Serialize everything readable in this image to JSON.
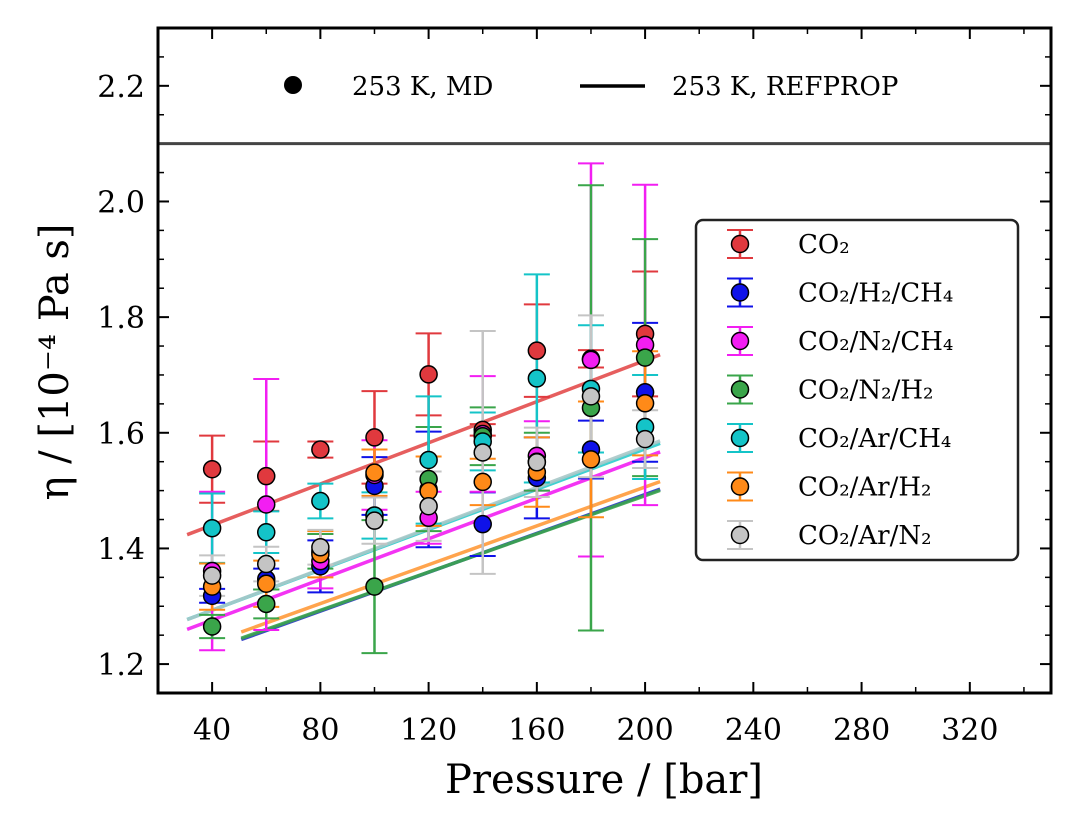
{
  "chart_data": {
    "type": "scatter",
    "xlabel": "Pressure / [bar]",
    "ylabel": "η / [10⁻⁴ Pa s]",
    "xlim": [
      20,
      350
    ],
    "ylim": [
      1.15,
      2.3
    ],
    "xticks": [
      40,
      80,
      120,
      160,
      200,
      240,
      280,
      320
    ],
    "yticks": [
      1.2,
      1.4,
      1.6,
      1.8,
      2.0,
      2.2
    ],
    "divider_y": 2.1,
    "top_legend": {
      "md_label": "253 K, MD",
      "refprop_label": "253 K, REFPROP"
    },
    "legend_title": "",
    "series": [
      {
        "name": "CO₂",
        "color": "#e0393e",
        "line_color": "#e34c4c",
        "x": [
          40,
          60,
          80,
          100,
          120,
          140,
          160,
          180,
          200
        ],
        "y": [
          1.537,
          1.525,
          1.571,
          1.592,
          1.701,
          1.605,
          1.742,
          1.728,
          1.771
        ],
        "err": [
          0.058,
          0.06,
          0.014,
          0.08,
          0.071,
          0.01,
          0.08,
          0.015,
          0.108
        ],
        "ref_x": [
          40,
          200
        ],
        "ref_y": [
          1.437,
          1.727
        ]
      },
      {
        "name": "CO₂/H₂/CH₄",
        "color": "#0f12e8",
        "line_color": "#2733c4",
        "x": [
          40,
          60,
          80,
          100,
          120,
          140,
          160,
          180,
          200
        ],
        "y": [
          1.318,
          1.347,
          1.369,
          1.508,
          1.502,
          1.442,
          1.522,
          1.571,
          1.67
        ],
        "err": [
          0.012,
          0.018,
          0.045,
          0.05,
          0.1,
          0.055,
          0.07,
          0.05,
          0.12
        ],
        "ref_x": [
          60,
          200
        ],
        "ref_y": [
          1.255,
          1.495
        ]
      },
      {
        "name": "CO₂/N₂/CH₄",
        "color": "#f21ef2",
        "line_color": "#f21ef2",
        "x": [
          40,
          60,
          80,
          100,
          120,
          140,
          160,
          180,
          200
        ],
        "y": [
          1.361,
          1.476,
          1.378,
          1.527,
          1.453,
          1.598,
          1.56,
          1.726,
          1.752
        ],
        "err": [
          0.137,
          0.217,
          0.047,
          0.06,
          0.045,
          0.1,
          0.06,
          0.34,
          0.277
        ],
        "ref_x": [
          40,
          200
        ],
        "ref_y": [
          1.273,
          1.559
        ]
      },
      {
        "name": "CO₂/N₂/H₂",
        "color": "#3aa54a",
        "line_color": "#3aa54a",
        "x": [
          40,
          60,
          80,
          100,
          120,
          140,
          160,
          180,
          200
        ],
        "y": [
          1.265,
          1.304,
          1.395,
          1.334,
          1.52,
          1.594,
          1.55,
          1.643,
          1.73
        ],
        "err": [
          0.02,
          0.025,
          0.03,
          0.115,
          0.09,
          0.05,
          0.05,
          0.385,
          0.205
        ],
        "ref_x": [
          60,
          200
        ],
        "ref_y": [
          1.257,
          1.493
        ]
      },
      {
        "name": "CO₂/Ar/CH₄",
        "color": "#14c4c8",
        "line_color": "#2bcccc",
        "x": [
          40,
          60,
          80,
          100,
          120,
          140,
          160,
          180,
          200
        ],
        "y": [
          1.435,
          1.428,
          1.482,
          1.457,
          1.553,
          1.585,
          1.694,
          1.676,
          1.61
        ],
        "err": [
          0.06,
          0.036,
          0.03,
          0.04,
          0.11,
          0.05,
          0.18,
          0.11,
          0.09
        ],
        "ref_x": [
          40,
          200
        ],
        "ref_y": [
          1.29,
          1.574
        ]
      },
      {
        "name": "CO₂/Ar/H₂",
        "color": "#ff8a18",
        "line_color": "#ff9a3a",
        "x": [
          40,
          60,
          80,
          100,
          120,
          140,
          160,
          180,
          200
        ],
        "y": [
          1.334,
          1.339,
          1.39,
          1.531,
          1.499,
          1.515,
          1.532,
          1.554,
          1.651
        ],
        "err": [
          0.04,
          0.04,
          0.04,
          0.04,
          0.06,
          0.04,
          0.06,
          0.1,
          0.09
        ],
        "ref_x": [
          60,
          200
        ],
        "ref_y": [
          1.268,
          1.508
        ]
      },
      {
        "name": "CO₂/Ar/N₂",
        "color": "#c4c4c4",
        "line_color": "#a8c8c8",
        "x": [
          40,
          60,
          80,
          100,
          120,
          140,
          160,
          180,
          200
        ],
        "y": [
          1.353,
          1.373,
          1.402,
          1.448,
          1.473,
          1.566,
          1.549,
          1.663,
          1.589
        ],
        "err": [
          0.035,
          0.03,
          0.03,
          0.04,
          0.06,
          0.21,
          0.06,
          0.14,
          0.05
        ],
        "ref_x": [
          40,
          200
        ],
        "ref_y": [
          1.29,
          1.578
        ]
      }
    ]
  }
}
